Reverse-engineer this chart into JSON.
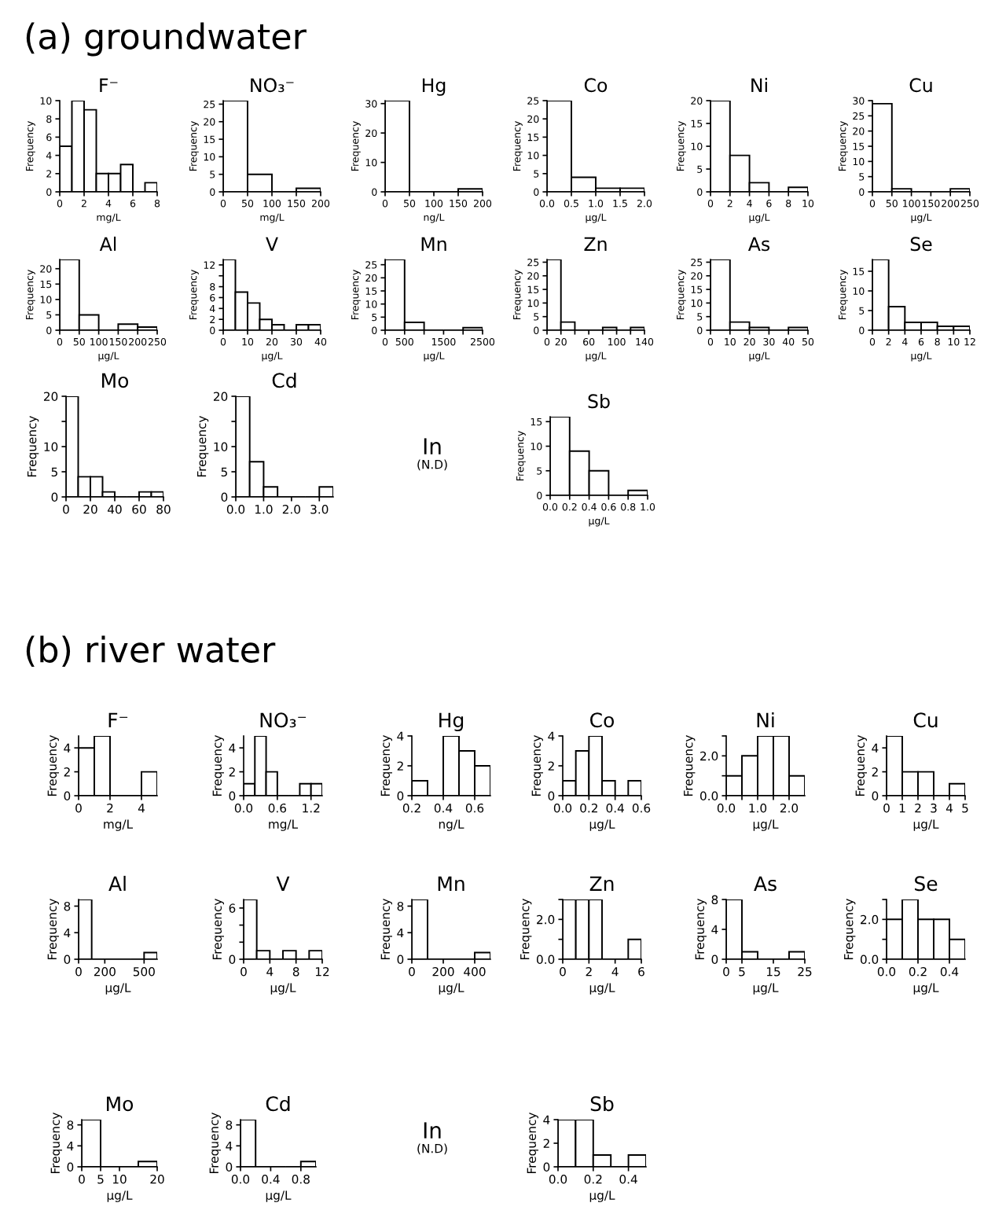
{
  "chart_data": [
    {
      "type": "other",
      "title": "(a) groundwater"
    },
    {
      "type": "histogram",
      "title": "F⁻",
      "xlabel": "mg/L",
      "ylabel": "Frequency",
      "bins": [
        0,
        1,
        2,
        3,
        4,
        5,
        6,
        7,
        8
      ],
      "values": [
        5,
        10,
        9,
        2,
        2,
        3,
        0,
        1
      ],
      "xlim": [
        0,
        8
      ],
      "xticks": [
        0,
        2,
        4,
        6,
        8
      ],
      "ylim": [
        0,
        10
      ],
      "yticks": [
        0,
        2,
        4,
        6,
        8,
        10
      ]
    },
    {
      "type": "histogram",
      "title": "NO₃⁻",
      "xlabel": "mg/L",
      "ylabel": "Frequency",
      "bins": [
        0,
        50,
        100,
        150,
        200
      ],
      "values": [
        26,
        5,
        0,
        1
      ],
      "xlim": [
        0,
        200
      ],
      "xticks": [
        0,
        50,
        100,
        150,
        200
      ],
      "ylim": [
        0,
        26
      ],
      "yticks": [
        0,
        5,
        10,
        15,
        20,
        25
      ]
    },
    {
      "type": "histogram",
      "title": "Hg",
      "xlabel": "ng/L",
      "ylabel": "Frequency",
      "bins": [
        0,
        50,
        100,
        150,
        200
      ],
      "values": [
        31,
        0,
        0,
        1
      ],
      "xlim": [
        0,
        200
      ],
      "xticks": [
        0,
        50,
        100,
        150,
        200
      ],
      "ylim": [
        0,
        31
      ],
      "yticks": [
        0,
        10,
        20,
        30
      ]
    },
    {
      "type": "histogram",
      "title": "Co",
      "xlabel": "µg/L",
      "ylabel": "Frequency",
      "bins": [
        0,
        0.5,
        1,
        1.5,
        2
      ],
      "values": [
        25,
        4,
        1,
        1
      ],
      "xlim": [
        0,
        2
      ],
      "xticks": [
        {
          "value": 0,
          "label": "0.0"
        },
        0.5,
        {
          "value": 1,
          "label": "1.0"
        },
        1.5,
        {
          "value": 2,
          "label": "2.0"
        }
      ],
      "ylim": [
        0,
        25
      ],
      "yticks": [
        0,
        5,
        10,
        15,
        20,
        25
      ]
    },
    {
      "type": "histogram",
      "title": "Ni",
      "xlabel": "µg/L",
      "ylabel": "Frequency",
      "bins": [
        0,
        2,
        4,
        6,
        8,
        10
      ],
      "values": [
        20,
        8,
        2,
        0,
        1
      ],
      "xlim": [
        0,
        10
      ],
      "xticks": [
        0,
        2,
        4,
        6,
        8,
        10
      ],
      "ylim": [
        0,
        20
      ],
      "yticks": [
        0,
        5,
        10,
        15,
        20
      ]
    },
    {
      "type": "histogram",
      "title": "Cu",
      "xlabel": "µg/L",
      "ylabel": "Frequency",
      "bins": [
        0,
        50,
        100,
        150,
        200,
        250
      ],
      "values": [
        29,
        1,
        0,
        0,
        1
      ],
      "xlim": [
        0,
        250
      ],
      "xticks": [
        0,
        50,
        100,
        150,
        200,
        250
      ],
      "ylim": [
        0,
        30
      ],
      "yticks": [
        0,
        5,
        10,
        15,
        20,
        25,
        30
      ]
    },
    {
      "type": "histogram",
      "title": "Al",
      "xlabel": "µg/L",
      "ylabel": "Frequency",
      "bins": [
        0,
        50,
        100,
        150,
        200,
        250
      ],
      "values": [
        23,
        5,
        0,
        2,
        1
      ],
      "xlim": [
        0,
        250
      ],
      "xticks": [
        0,
        50,
        100,
        150,
        200,
        250
      ],
      "ylim": [
        0,
        23
      ],
      "yticks": [
        0,
        5,
        10,
        15,
        20
      ]
    },
    {
      "type": "histogram",
      "title": "V",
      "xlabel": "µg/L",
      "ylabel": "Frequency",
      "bins": [
        0,
        5,
        10,
        15,
        20,
        25,
        30,
        35,
        40
      ],
      "values": [
        13,
        7,
        5,
        2,
        1,
        0,
        1,
        1
      ],
      "xlim": [
        0,
        40
      ],
      "xticks": [
        0,
        10,
        20,
        30,
        40
      ],
      "ylim": [
        0,
        13
      ],
      "yticks": [
        0,
        2,
        4,
        6,
        8,
        {
          "value": 10,
          "label": null
        },
        12
      ]
    },
    {
      "type": "histogram",
      "title": "Mn",
      "xlabel": "µg/L",
      "ylabel": "Frequency",
      "bins": [
        0,
        500,
        1000,
        1500,
        2000,
        2500
      ],
      "values": [
        27,
        3,
        0,
        0,
        1
      ],
      "xlim": [
        0,
        2500
      ],
      "xticks": [
        0,
        500,
        {
          "value": 1000,
          "label": null
        },
        1500,
        {
          "value": 2000,
          "label": null
        },
        2500
      ],
      "ylim": [
        0,
        27
      ],
      "yticks": [
        0,
        5,
        10,
        15,
        20,
        25
      ]
    },
    {
      "type": "histogram",
      "title": "Zn",
      "xlabel": "µg/L",
      "ylabel": "Frequency",
      "bins": [
        0,
        20,
        40,
        60,
        80,
        100,
        120,
        140
      ],
      "values": [
        26,
        3,
        0,
        0,
        1,
        0,
        1
      ],
      "xlim": [
        0,
        140
      ],
      "xticks": [
        0,
        20,
        {
          "value": 40,
          "label": null
        },
        60,
        {
          "value": 80,
          "label": null
        },
        100,
        {
          "value": 120,
          "label": null
        },
        140
      ],
      "ylim": [
        0,
        26
      ],
      "yticks": [
        0,
        5,
        10,
        15,
        20,
        25
      ]
    },
    {
      "type": "histogram",
      "title": "As",
      "xlabel": "µg/L",
      "ylabel": "Frequency",
      "bins": [
        0,
        10,
        20,
        30,
        40,
        50
      ],
      "values": [
        26,
        3,
        1,
        0,
        1
      ],
      "xlim": [
        0,
        50
      ],
      "xticks": [
        0,
        10,
        20,
        30,
        40,
        50
      ],
      "ylim": [
        0,
        26
      ],
      "yticks": [
        0,
        5,
        10,
        15,
        20,
        25
      ]
    },
    {
      "type": "histogram",
      "title": "Se",
      "xlabel": "µg/L",
      "ylabel": "Frequency",
      "bins": [
        0,
        2,
        4,
        6,
        8,
        10,
        12
      ],
      "values": [
        18,
        6,
        2,
        2,
        1,
        1
      ],
      "xlim": [
        0,
        12
      ],
      "xticks": [
        0,
        2,
        4,
        6,
        8,
        10,
        12
      ],
      "ylim": [
        0,
        18
      ],
      "yticks": [
        0,
        5,
        10,
        15
      ]
    },
    {
      "type": "histogram",
      "title": "Mo",
      "ylabel": "Frequency",
      "bins": [
        0,
        10,
        20,
        30,
        40,
        50,
        60,
        70,
        80
      ],
      "values": [
        20,
        4,
        4,
        1,
        0,
        0,
        1,
        1
      ],
      "xlim": [
        0,
        80
      ],
      "xticks": [
        0,
        20,
        40,
        60,
        80
      ],
      "ylim": [
        0,
        20
      ],
      "yticks": [
        0,
        5,
        10,
        {
          "value": 15,
          "label": null
        },
        20
      ]
    },
    {
      "type": "histogram",
      "title": "Cd",
      "ylabel": "Frequency",
      "bins": [
        0.0,
        0.5,
        1.0,
        1.5,
        2.0,
        2.5,
        3.0,
        3.5
      ],
      "values": [
        20,
        7,
        2,
        0,
        0,
        0,
        2
      ],
      "xlim": [
        0.0,
        3.5
      ],
      "xticks": [
        {
          "value": 0,
          "label": "0.0"
        },
        {
          "value": 1,
          "label": "1.0"
        },
        {
          "value": 2,
          "label": "2.0"
        },
        {
          "value": 3,
          "label": "3.0"
        }
      ],
      "ylim": [
        0,
        20
      ],
      "yticks": [
        0,
        5,
        10,
        {
          "value": 15,
          "label": null
        },
        20
      ]
    },
    {
      "type": "other",
      "title": "In",
      "annotations": [
        "(N.D)"
      ]
    },
    {
      "type": "histogram",
      "title": "Sb",
      "xlabel": "µg/L",
      "ylabel": "Frequency",
      "bins": [
        0.0,
        0.2,
        0.4,
        0.6,
        0.8,
        1.0
      ],
      "values": [
        16,
        9,
        5,
        0,
        1
      ],
      "xlim": [
        0.0,
        1.0
      ],
      "xticks": [
        {
          "value": 0,
          "label": "0.0"
        },
        0.2,
        0.4,
        0.6,
        0.8,
        {
          "value": 1,
          "label": "1.0"
        }
      ],
      "ylim": [
        0,
        16
      ],
      "yticks": [
        0,
        5,
        10,
        15
      ]
    },
    {
      "type": "other",
      "title": "(b) river water"
    },
    {
      "type": "histogram",
      "title": "F⁻",
      "xlabel": "mg/L",
      "ylabel": "Frequency",
      "bins": [
        0,
        1,
        2,
        3,
        4,
        5
      ],
      "values": [
        4,
        5,
        0,
        0,
        2
      ],
      "xlim": [
        0,
        5
      ],
      "xticks": [
        0,
        2,
        4
      ],
      "ylim": [
        0,
        5
      ],
      "yticks": [
        0,
        2,
        4
      ]
    },
    {
      "type": "histogram",
      "title": "NO₃⁻",
      "xlabel": "mg/L",
      "ylabel": "Frequency",
      "bins": [
        0.0,
        0.2,
        0.4,
        0.6,
        0.8,
        1.0,
        1.2,
        1.4
      ],
      "values": [
        1,
        5,
        2,
        0,
        0,
        1,
        1
      ],
      "xlim": [
        0.0,
        1.4
      ],
      "xticks": [
        {
          "value": 0,
          "label": "0.0"
        },
        0.6,
        1.2
      ],
      "ylim": [
        0,
        5
      ],
      "yticks": [
        0,
        2,
        4
      ]
    },
    {
      "type": "histogram",
      "title": "Hg",
      "xlabel": "ng/L",
      "ylabel": "Frequency",
      "bins": [
        0.2,
        0.3,
        0.4,
        0.5,
        0.6,
        0.7
      ],
      "values": [
        1,
        0,
        4,
        3,
        2
      ],
      "xlim": [
        0.2,
        0.7
      ],
      "xticks": [
        0.2,
        0.4,
        0.6
      ],
      "ylim": [
        0,
        4
      ],
      "yticks": [
        0,
        2,
        4
      ]
    },
    {
      "type": "histogram",
      "title": "Co",
      "xlabel": "µg/L",
      "ylabel": "Frequency",
      "bins": [
        0.0,
        0.1,
        0.2,
        0.3,
        0.4,
        0.5,
        0.6
      ],
      "values": [
        1,
        3,
        4,
        1,
        0,
        1
      ],
      "xlim": [
        0.0,
        0.6
      ],
      "xticks": [
        {
          "value": 0,
          "label": "0.0"
        },
        0.2,
        0.4,
        0.6
      ],
      "ylim": [
        0,
        4
      ],
      "yticks": [
        0,
        2,
        4
      ]
    },
    {
      "type": "histogram",
      "title": "Ni",
      "xlabel": "µg/L",
      "ylabel": "Frequency",
      "bins": [
        0.0,
        0.5,
        1.0,
        1.5,
        2.0,
        2.5
      ],
      "values": [
        1,
        2,
        3,
        3,
        1
      ],
      "xlim": [
        0.0,
        2.5
      ],
      "xticks": [
        {
          "value": 0,
          "label": "0.0"
        },
        {
          "value": 0.5,
          "label": null
        },
        {
          "value": 1,
          "label": "1.0"
        },
        {
          "value": 1.5,
          "label": null
        },
        {
          "value": 2,
          "label": "2.0"
        }
      ],
      "ylim": [
        0,
        3
      ],
      "yticks": [
        {
          "value": 0,
          "label": "0.0"
        },
        {
          "value": 1,
          "label": null
        },
        {
          "value": 2,
          "label": "2.0"
        },
        {
          "value": 3,
          "label": null
        }
      ]
    },
    {
      "type": "histogram",
      "title": "Cu",
      "xlabel": "µg/L",
      "ylabel": "Frequency",
      "bins": [
        0,
        1,
        2,
        3,
        4,
        5
      ],
      "values": [
        5,
        2,
        2,
        0,
        1
      ],
      "xlim": [
        0,
        5
      ],
      "xticks": [
        0,
        1,
        2,
        3,
        4,
        5
      ],
      "ylim": [
        0,
        5
      ],
      "yticks": [
        0,
        2,
        4
      ]
    },
    {
      "type": "histogram",
      "title": "Al",
      "xlabel": "µg/L",
      "ylabel": "Frequency",
      "bins": [
        0,
        100,
        200,
        300,
        400,
        500,
        600
      ],
      "values": [
        9,
        0,
        0,
        0,
        0,
        1
      ],
      "xlim": [
        0,
        600
      ],
      "xticks": [
        0,
        200,
        500
      ],
      "ylim": [
        0,
        9
      ],
      "yticks": [
        0,
        4,
        8
      ]
    },
    {
      "type": "histogram",
      "title": "V",
      "xlabel": "µg/L",
      "ylabel": "Frequency",
      "bins": [
        0,
        2,
        4,
        6,
        8,
        10,
        12
      ],
      "values": [
        7,
        1,
        0,
        1,
        0,
        1
      ],
      "xlim": [
        0,
        12
      ],
      "xticks": [
        0,
        4,
        8,
        12
      ],
      "ylim": [
        0,
        7
      ],
      "yticks": [
        0,
        {
          "value": 2,
          "label": null
        },
        {
          "value": 4,
          "label": null
        },
        6
      ]
    },
    {
      "type": "histogram",
      "title": "Mn",
      "xlabel": "µg/L",
      "ylabel": "Frequency",
      "bins": [
        0,
        100,
        200,
        300,
        400,
        500
      ],
      "values": [
        9,
        0,
        0,
        0,
        1
      ],
      "xlim": [
        0,
        500
      ],
      "xticks": [
        0,
        200,
        400
      ],
      "ylim": [
        0,
        9
      ],
      "yticks": [
        0,
        4,
        8
      ]
    },
    {
      "type": "histogram",
      "title": "Zn",
      "xlabel": "µg/L",
      "ylabel": "Frequency",
      "bins": [
        0,
        1,
        2,
        3,
        4,
        5,
        6
      ],
      "values": [
        3,
        3,
        3,
        0,
        0,
        1
      ],
      "xlim": [
        0,
        6
      ],
      "xticks": [
        0,
        2,
        4,
        6
      ],
      "ylim": [
        0,
        3
      ],
      "yticks": [
        {
          "value": 0,
          "label": "0.0"
        },
        {
          "value": 1,
          "label": null
        },
        {
          "value": 2,
          "label": "2.0"
        },
        {
          "value": 3,
          "label": null
        }
      ]
    },
    {
      "type": "histogram",
      "title": "As",
      "xlabel": "µg/L",
      "ylabel": "Frequency",
      "bins": [
        0,
        5,
        10,
        15,
        20,
        25
      ],
      "values": [
        8,
        1,
        0,
        0,
        1
      ],
      "xlim": [
        0,
        25
      ],
      "xticks": [
        0,
        5,
        15,
        25
      ],
      "ylim": [
        0,
        8
      ],
      "yticks": [
        0,
        4,
        8
      ]
    },
    {
      "type": "histogram",
      "title": "Se",
      "xlabel": "µg/L",
      "ylabel": "Frequency",
      "bins": [
        0.0,
        0.1,
        0.2,
        0.3,
        0.4,
        0.5
      ],
      "values": [
        2,
        3,
        2,
        2,
        1
      ],
      "xlim": [
        0.0,
        0.5
      ],
      "xticks": [
        {
          "value": 0,
          "label": "0.0"
        },
        0.2,
        0.4
      ],
      "ylim": [
        0,
        3
      ],
      "yticks": [
        {
          "value": 0,
          "label": "0.0"
        },
        {
          "value": 1,
          "label": null
        },
        {
          "value": 2,
          "label": "2.0"
        },
        {
          "value": 3,
          "label": null
        }
      ]
    },
    {
      "type": "histogram",
      "title": "Mo",
      "xlabel": "µg/L",
      "ylabel": "Frequency",
      "bins": [
        0,
        5,
        10,
        15,
        20
      ],
      "values": [
        9,
        0,
        0,
        1
      ],
      "xlim": [
        0,
        20
      ],
      "xticks": [
        0,
        5,
        10,
        20
      ],
      "ylim": [
        0,
        9
      ],
      "yticks": [
        0,
        4,
        8
      ]
    },
    {
      "type": "histogram",
      "title": "Cd",
      "xlabel": "µg/L",
      "ylabel": "Frequency",
      "bins": [
        0.0,
        0.2,
        0.4,
        0.6,
        0.8,
        1.0
      ],
      "values": [
        9,
        0,
        0,
        0,
        1
      ],
      "xlim": [
        0.0,
        1.0
      ],
      "xticks": [
        {
          "value": 0,
          "label": "0.0"
        },
        0.4,
        0.8
      ],
      "ylim": [
        0,
        9
      ],
      "yticks": [
        0,
        4,
        8
      ]
    },
    {
      "type": "other",
      "title": "In",
      "annotations": [
        "(N.D)"
      ]
    },
    {
      "type": "histogram",
      "title": "Sb",
      "xlabel": "µg/L",
      "ylabel": "Frequency",
      "bins": [
        0.0,
        0.1,
        0.2,
        0.3,
        0.4,
        0.5
      ],
      "values": [
        4,
        4,
        1,
        0,
        1
      ],
      "xlim": [
        0.0,
        0.5
      ],
      "xticks": [
        {
          "value": 0,
          "label": "0.0"
        },
        0.2,
        0.4
      ],
      "ylim": [
        0,
        4
      ],
      "yticks": [
        0,
        2,
        4
      ]
    }
  ]
}
